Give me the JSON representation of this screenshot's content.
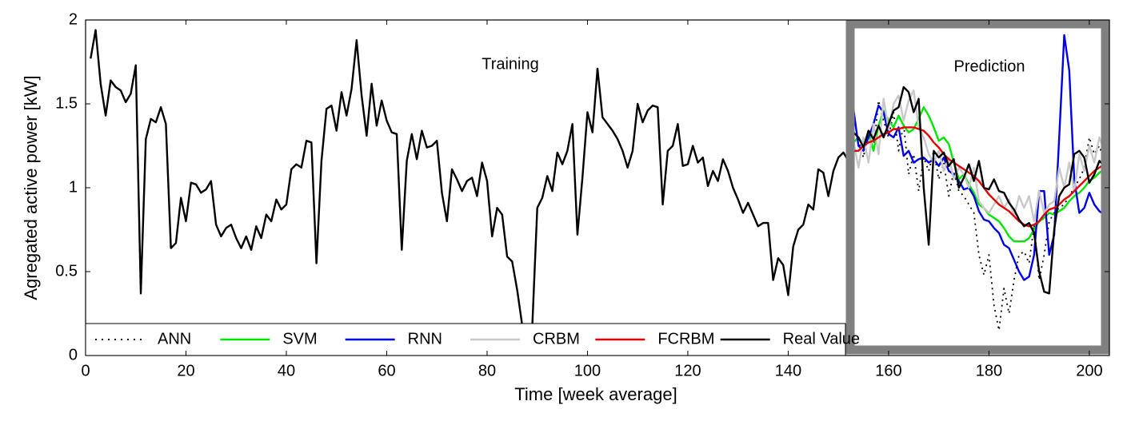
{
  "chart_data": {
    "type": "line",
    "annotations": [
      "Training",
      "Prediction"
    ],
    "xlabel": "Time [week average]",
    "ylabel": "Agregated active power [kW]",
    "xlim": [
      0,
      204
    ],
    "ylim": [
      0,
      2
    ],
    "xticks": [
      0,
      20,
      40,
      60,
      80,
      100,
      120,
      140,
      160,
      180,
      200
    ],
    "yticks": [
      0,
      0.5,
      1,
      1.5,
      2
    ],
    "legend": "lower left",
    "series": [
      {
        "name": "ANN",
        "color": "#000000",
        "dash": "dotted",
        "x": [
          153,
          154,
          155,
          156,
          157,
          158,
          159,
          160,
          161,
          162,
          163,
          164,
          165,
          166,
          167,
          168,
          169,
          170,
          171,
          172,
          173,
          174,
          175,
          176,
          177,
          178,
          179,
          180,
          181,
          182,
          183,
          184,
          185,
          186,
          187,
          188,
          189,
          190,
          191,
          192,
          193,
          194,
          195,
          196,
          197,
          198,
          199,
          200,
          201,
          202,
          203
        ],
        "values": [
          1.35,
          1.28,
          1.18,
          1.35,
          1.22,
          1.52,
          1.4,
          1.3,
          1.45,
          1.22,
          1.38,
          1.08,
          1.2,
          0.98,
          1.18,
          1.1,
          1.22,
          1.05,
          1.15,
          0.95,
          1.1,
          0.98,
          0.95,
          0.9,
          0.85,
          0.6,
          0.48,
          0.6,
          0.3,
          0.15,
          0.4,
          0.25,
          0.45,
          0.6,
          0.62,
          0.55,
          0.78,
          0.45,
          0.6,
          0.8,
          0.85,
          0.88,
          0.9,
          0.95,
          1.0,
          1.05,
          1.12,
          1.3,
          1.2,
          1.25,
          1.15
        ]
      },
      {
        "name": "SVM",
        "color": "#00e600",
        "x": [
          153,
          154,
          155,
          156,
          157,
          158,
          159,
          160,
          161,
          162,
          163,
          164,
          165,
          166,
          167,
          168,
          169,
          170,
          171,
          172,
          173,
          174,
          175,
          176,
          177,
          178,
          179,
          180,
          181,
          182,
          183,
          184,
          185,
          186,
          187,
          188,
          189,
          190,
          191,
          192,
          193,
          194,
          195,
          196,
          197,
          198,
          199,
          200,
          201,
          202,
          203
        ],
        "values": [
          1.27,
          1.3,
          1.25,
          1.33,
          1.22,
          1.37,
          1.46,
          1.4,
          1.36,
          1.43,
          1.37,
          1.33,
          1.35,
          1.41,
          1.48,
          1.43,
          1.36,
          1.28,
          1.3,
          1.26,
          1.15,
          1.05,
          1.08,
          1.02,
          0.97,
          0.9,
          0.88,
          0.84,
          0.82,
          0.8,
          0.76,
          0.71,
          0.68,
          0.68,
          0.68,
          0.7,
          0.75,
          0.8,
          0.82,
          0.85,
          0.84,
          0.86,
          0.88,
          0.92,
          0.95,
          0.97,
          1.0,
          1.04,
          1.06,
          1.09,
          1.11
        ]
      },
      {
        "name": "RNN",
        "color": "#0000e6",
        "x": [
          153,
          154,
          155,
          156,
          157,
          158,
          159,
          160,
          161,
          162,
          163,
          164,
          165,
          166,
          167,
          168,
          169,
          170,
          171,
          172,
          173,
          174,
          175,
          176,
          177,
          178,
          179,
          180,
          181,
          182,
          183,
          184,
          185,
          186,
          187,
          188,
          189,
          190,
          191,
          192,
          193,
          194,
          195,
          196,
          197,
          198,
          199,
          200,
          201,
          202,
          203
        ],
        "values": [
          1.47,
          1.25,
          1.22,
          1.3,
          1.38,
          1.49,
          1.45,
          1.32,
          1.3,
          1.36,
          1.19,
          1.22,
          1.15,
          1.17,
          1.18,
          1.15,
          1.17,
          1.13,
          1.18,
          1.1,
          1.08,
          1.04,
          0.99,
          1.0,
          0.95,
          0.86,
          0.81,
          0.8,
          0.76,
          0.73,
          0.66,
          0.64,
          0.57,
          0.5,
          0.45,
          0.47,
          0.6,
          0.98,
          0.98,
          0.6,
          0.72,
          1.3,
          1.91,
          1.7,
          1.05,
          0.85,
          0.88,
          0.97,
          0.9,
          0.86,
          0.84
        ]
      },
      {
        "name": "CRBM",
        "color": "#c8c8c8",
        "x": [
          153,
          154,
          155,
          156,
          157,
          158,
          159,
          160,
          161,
          162,
          163,
          164,
          165,
          166,
          167,
          168,
          169,
          170,
          171,
          172,
          173,
          174,
          175,
          176,
          177,
          178,
          179,
          180,
          181,
          182,
          183,
          184,
          185,
          186,
          187,
          188,
          189,
          190,
          191,
          192,
          193,
          194,
          195,
          196,
          197,
          198,
          199,
          200,
          201,
          202,
          203
        ],
        "values": [
          1.28,
          1.12,
          1.3,
          1.15,
          1.38,
          1.2,
          1.53,
          1.35,
          1.5,
          1.55,
          1.4,
          1.52,
          1.58,
          1.36,
          1.3,
          1.2,
          1.15,
          1.22,
          1.1,
          1.18,
          1.05,
          1.12,
          1.08,
          1.0,
          1.12,
          0.92,
          0.88,
          0.85,
          0.9,
          0.95,
          0.88,
          0.93,
          0.83,
          0.95,
          0.88,
          0.95,
          0.8,
          0.98,
          0.85,
          0.9,
          0.92,
          1.12,
          1.0,
          1.15,
          0.98,
          1.2,
          1.1,
          1.25,
          1.15,
          1.3,
          1.22
        ]
      },
      {
        "name": "FCRBM",
        "color": "#e60000",
        "x": [
          153,
          154,
          155,
          156,
          157,
          158,
          159,
          160,
          161,
          162,
          163,
          164,
          165,
          166,
          167,
          168,
          169,
          170,
          171,
          172,
          173,
          174,
          175,
          176,
          177,
          178,
          179,
          180,
          181,
          182,
          183,
          184,
          185,
          186,
          187,
          188,
          189,
          190,
          191,
          192,
          193,
          194,
          195,
          196,
          197,
          198,
          199,
          200,
          201,
          202,
          203
        ],
        "values": [
          1.22,
          1.22,
          1.25,
          1.27,
          1.28,
          1.3,
          1.32,
          1.33,
          1.35,
          1.35,
          1.36,
          1.36,
          1.36,
          1.35,
          1.34,
          1.31,
          1.27,
          1.24,
          1.2,
          1.17,
          1.15,
          1.13,
          1.11,
          1.09,
          1.07,
          1.04,
          1.0,
          0.96,
          0.93,
          0.9,
          0.88,
          0.86,
          0.83,
          0.8,
          0.78,
          0.77,
          0.78,
          0.8,
          0.84,
          0.87,
          0.88,
          0.9,
          0.93,
          0.95,
          0.98,
          1.01,
          1.04,
          1.07,
          1.1,
          1.12,
          1.14
        ]
      },
      {
        "name": "Real Value",
        "color": "#000000",
        "x": [
          1,
          2,
          3,
          4,
          5,
          6,
          7,
          8,
          9,
          10,
          11,
          12,
          13,
          14,
          15,
          16,
          17,
          18,
          19,
          20,
          21,
          22,
          23,
          24,
          25,
          26,
          27,
          28,
          29,
          30,
          31,
          32,
          33,
          34,
          35,
          36,
          37,
          38,
          39,
          40,
          41,
          42,
          43,
          44,
          45,
          46,
          47,
          48,
          49,
          50,
          51,
          52,
          53,
          54,
          55,
          56,
          57,
          58,
          59,
          60,
          61,
          62,
          63,
          64,
          65,
          66,
          67,
          68,
          69,
          70,
          71,
          72,
          73,
          74,
          75,
          76,
          77,
          78,
          79,
          80,
          81,
          82,
          83,
          84,
          85,
          86,
          87,
          88,
          89,
          90,
          91,
          92,
          93,
          94,
          95,
          96,
          97,
          98,
          99,
          100,
          101,
          102,
          103,
          104,
          105,
          106,
          107,
          108,
          109,
          110,
          111,
          112,
          113,
          114,
          115,
          116,
          117,
          118,
          119,
          120,
          121,
          122,
          123,
          124,
          125,
          126,
          127,
          128,
          129,
          130,
          131,
          132,
          133,
          134,
          135,
          136,
          137,
          138,
          139,
          140,
          141,
          142,
          143,
          144,
          145,
          146,
          147,
          148,
          149,
          150,
          151,
          152,
          153,
          154,
          155,
          156,
          157,
          158,
          159,
          160,
          161,
          162,
          163,
          164,
          165,
          166,
          167,
          168,
          169,
          170,
          171,
          172,
          173,
          174,
          175,
          176,
          177,
          178,
          179,
          180,
          181,
          182,
          183,
          184,
          185,
          186,
          187,
          188,
          189,
          190,
          191,
          192,
          193,
          194,
          195,
          196,
          197,
          198,
          199,
          200,
          201,
          202,
          203
        ],
        "values": [
          1.77,
          1.94,
          1.62,
          1.43,
          1.64,
          1.6,
          1.58,
          1.51,
          1.56,
          1.73,
          0.37,
          1.29,
          1.41,
          1.39,
          1.48,
          1.38,
          0.64,
          0.67,
          0.94,
          0.8,
          1.03,
          1.02,
          0.97,
          0.99,
          1.04,
          0.78,
          0.71,
          0.76,
          0.78,
          0.7,
          0.64,
          0.71,
          0.63,
          0.77,
          0.7,
          0.84,
          0.8,
          0.93,
          0.87,
          0.9,
          1.11,
          1.14,
          1.12,
          1.28,
          1.27,
          0.55,
          1.16,
          1.47,
          1.49,
          1.34,
          1.57,
          1.43,
          1.59,
          1.88,
          1.55,
          1.31,
          1.62,
          1.37,
          1.52,
          1.4,
          1.33,
          1.32,
          0.63,
          1.16,
          1.32,
          1.17,
          1.34,
          1.24,
          1.25,
          1.28,
          0.97,
          0.8,
          1.11,
          1.05,
          0.98,
          1.04,
          1.06,
          0.95,
          1.15,
          1.04,
          0.71,
          0.88,
          0.84,
          0.59,
          0.56,
          0.39,
          0.18,
          0.1,
          0.17,
          0.88,
          0.94,
          1.07,
          0.98,
          1.21,
          1.14,
          1.22,
          1.38,
          0.72,
          1.06,
          1.45,
          1.33,
          1.71,
          1.42,
          1.38,
          1.34,
          1.29,
          1.22,
          1.12,
          1.22,
          1.5,
          1.39,
          1.46,
          1.49,
          1.48,
          0.9,
          1.22,
          1.25,
          1.38,
          1.13,
          1.14,
          1.25,
          1.15,
          1.18,
          1.01,
          1.1,
          1.04,
          1.17,
          1.1,
          1.0,
          0.93,
          0.85,
          0.91,
          0.84,
          0.77,
          0.79,
          0.79,
          0.45,
          0.58,
          0.54,
          0.36,
          0.65,
          0.75,
          0.78,
          0.9,
          0.87,
          1.11,
          1.09,
          0.95,
          1.1,
          1.18,
          1.21,
          1.16,
          1.33,
          1.3,
          1.24,
          1.34,
          1.29,
          1.37,
          1.3,
          1.38,
          1.46,
          1.48,
          1.6,
          1.57,
          1.45,
          1.53,
          1.0,
          0.66,
          1.22,
          1.18,
          1.21,
          1.13,
          1.17,
          1.0,
          1.06,
          1.14,
          1.04,
          1.16,
          1.0,
          0.99,
          1.05,
          0.98,
          0.97,
          0.91,
          0.87,
          0.81,
          0.77,
          0.79,
          0.73,
          0.5,
          0.38,
          0.37,
          0.75,
          0.95,
          1.0,
          1.02,
          1.2,
          1.22,
          1.18,
          1.03,
          1.08,
          1.16,
          1.13
        ]
      }
    ]
  }
}
